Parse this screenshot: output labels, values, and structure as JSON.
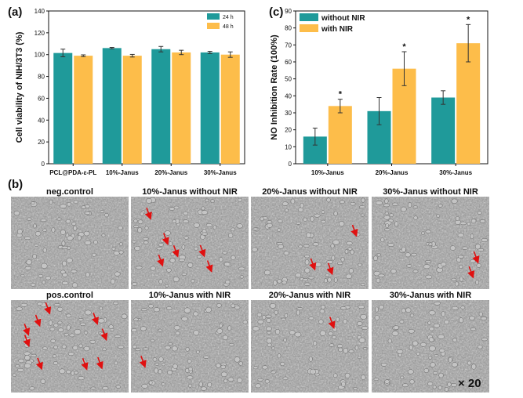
{
  "panels": {
    "a_label": "(a)",
    "b_label": "(b)",
    "c_label": "(c)"
  },
  "chart_data": [
    {
      "id": "a",
      "type": "bar",
      "title": "",
      "xlabel": "",
      "ylabel": "Cell viability of NIH/3T3 (%)",
      "ylim": [
        0,
        140
      ],
      "yticks": [
        "0",
        "20",
        "40",
        "60",
        "80",
        "100",
        "120",
        "140"
      ],
      "categories": [
        "PCL@PDA-ε-PL",
        "10%-Janus",
        "20%-Janus",
        "30%-Janus"
      ],
      "legend_position": "top-right",
      "series": [
        {
          "name": "24 h",
          "color": "#1f9a9a",
          "values": [
            101.5,
            106,
            105,
            102
          ],
          "errors": [
            3.5,
            0.6,
            2.5,
            1.0
          ]
        },
        {
          "name": "48 h",
          "color": "#fdbd4a",
          "values": [
            99,
            99,
            102,
            100
          ],
          "errors": [
            0.8,
            1.2,
            2.0,
            2.5
          ]
        }
      ]
    },
    {
      "id": "c",
      "type": "bar",
      "title": "",
      "xlabel": "",
      "ylabel": "NO Inhibition Rate (100%)",
      "ylim": [
        0,
        90
      ],
      "yticks": [
        "0",
        "10",
        "20",
        "30",
        "40",
        "50",
        "60",
        "70",
        "80",
        "90"
      ],
      "categories": [
        "10%-Janus",
        "20%-Janus",
        "30%-Janus"
      ],
      "legend_position": "top-left",
      "series": [
        {
          "name": "without NIR",
          "color": "#1f9a9a",
          "values": [
            16,
            31,
            39
          ],
          "errors": [
            5,
            8,
            4
          ]
        },
        {
          "name": "with NIR",
          "color": "#fdbd4a",
          "values": [
            34,
            56,
            71
          ],
          "errors": [
            4,
            10,
            11
          ]
        }
      ],
      "significance": [
        "*",
        "*",
        "*"
      ]
    }
  ],
  "micrographs": {
    "top_row": [
      {
        "title": "neg.control",
        "arrows": 0
      },
      {
        "title": "10%-Janus without NIR",
        "arrows": 6
      },
      {
        "title": "20%-Janus without NIR",
        "arrows": 3
      },
      {
        "title": "30%-Janus without NIR",
        "arrows": 2
      }
    ],
    "bottom_row": [
      {
        "title": "pos.control",
        "arrows": 9
      },
      {
        "title": "10%-Janus with NIR",
        "arrows": 1
      },
      {
        "title": "20%-Janus with NIR",
        "arrows": 1
      },
      {
        "title": "30%-Janus with NIR",
        "arrows": 0
      }
    ],
    "magnification": "× 20"
  }
}
